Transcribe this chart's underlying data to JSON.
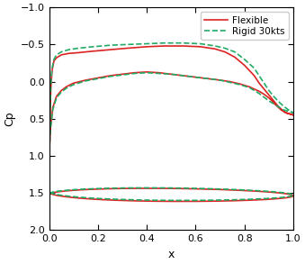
{
  "title": "",
  "xlabel": "x",
  "ylabel": "Cp",
  "xlim": [
    0,
    1
  ],
  "ylim": [
    2,
    -1
  ],
  "xticks": [
    0,
    0.2,
    0.4,
    0.6,
    0.8,
    1.0
  ],
  "yticks": [
    -1,
    -0.5,
    0,
    0.5,
    1,
    1.5,
    2
  ],
  "flex_color": "#dd2222",
  "rigid_color": "#22aa66",
  "flex_label": "Flexible",
  "rigid_label": "Rigid 30kts",
  "figsize": [
    3.39,
    2.93
  ],
  "dpi": 100,
  "legend_loc": "upper center",
  "tick_fontsize": 8,
  "label_fontsize": 9,
  "linewidth": 1.2
}
